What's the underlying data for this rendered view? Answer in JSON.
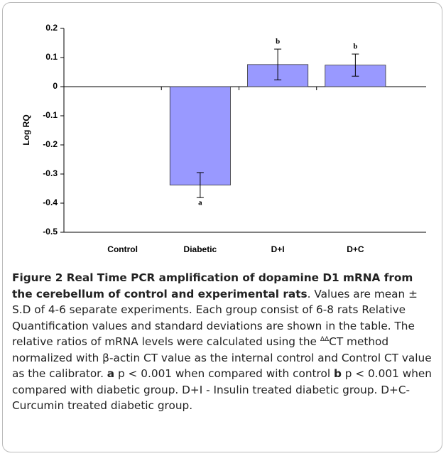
{
  "chart_data": {
    "type": "bar",
    "ylabel": "Log RQ",
    "categories": [
      "Control",
      "Diabetic",
      "D+I",
      "D+C"
    ],
    "values": [
      0,
      -0.338,
      0.076,
      0.074
    ],
    "errors": [
      0,
      0.043,
      0.053,
      0.038
    ],
    "significance": [
      null,
      "a",
      "b",
      "b"
    ],
    "color": "#9999ff",
    "ylim": [
      -0.5,
      0.2
    ],
    "yticks": [
      -0.5,
      -0.4,
      -0.3,
      -0.2,
      -0.1,
      0,
      0.1,
      0.2
    ],
    "grid": false
  },
  "caption": {
    "segments": [
      "Figure 2 Real Time PCR amplification of dopamine D1 mRNA from the cerebellum of control and experimental rats",
      ". Values are mean ± S.D of 4-6 separate experiments. Each group consist of 6-8 rats Relative Quantification values and standard deviations are shown in the table. The relative ratios of mRNA levels were calculated using the ",
      "ΔΔ",
      "CT method normalized with β-actin CT value as the internal control and Control CT value as the calibrator. ",
      "a",
      " p < 0.001 when compared with control ",
      "b",
      " p < 0.001 when compared with diabetic group. D+I - Insulin treated diabetic group. D+C- Curcumin treated diabetic group."
    ]
  }
}
